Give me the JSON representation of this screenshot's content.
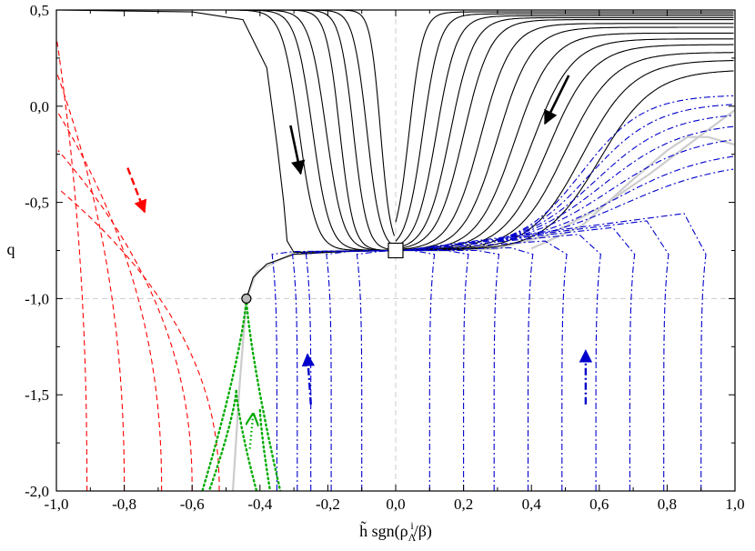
{
  "chart_data": {
    "type": "line",
    "title": "",
    "xlabel": "h̃ sgn(ρΛi/β)",
    "ylabel": "q",
    "xlim": [
      -1.0,
      1.0
    ],
    "ylim": [
      -2.0,
      0.5
    ],
    "x_ticks": [
      -1.0,
      -0.8,
      -0.6,
      -0.4,
      -0.2,
      0.0,
      0.2,
      0.4,
      0.6,
      0.8,
      1.0
    ],
    "x_tick_labels": [
      "-1,0",
      "-0,8",
      "-0,6",
      "-0,4",
      "-0,2",
      "0,0",
      "0,2",
      "0,4",
      "0,6",
      "0,8",
      "1,0"
    ],
    "y_ticks": [
      0.5,
      0.0,
      -0.5,
      -1.0,
      -1.5,
      -2.0
    ],
    "y_tick_labels": [
      "0,5",
      "0,0",
      "-0,5",
      "-1,0",
      "-1,5",
      "-2,0"
    ],
    "reference_lines": {
      "vertical_x": 0.0,
      "horizontal_y": -1.0
    },
    "fixed_points": [
      {
        "name": "square-marker",
        "x": 0.0,
        "y": -0.75
      },
      {
        "name": "circle-marker",
        "x": -0.44,
        "y": -1.0
      }
    ],
    "series": [
      {
        "name": "black-solid-left",
        "style": "solid",
        "color": "#000000",
        "curves": [
          {
            "q0": 0.5,
            "transition_x": -0.285,
            "width": 0.025
          },
          {
            "q0": 0.5,
            "transition_x": -0.245,
            "width": 0.025
          },
          {
            "q0": 0.5,
            "transition_x": -0.205,
            "width": 0.025
          },
          {
            "q0": 0.5,
            "transition_x": -0.165,
            "width": 0.02
          },
          {
            "q0": 0.5,
            "transition_x": -0.125,
            "width": 0.02
          },
          {
            "q0": 0.5,
            "transition_x": -0.085,
            "width": 0.02
          },
          {
            "q0": 0.5,
            "transition_x": -0.045,
            "width": 0.015
          }
        ]
      },
      {
        "name": "black-solid-right",
        "style": "solid",
        "color": "#000000",
        "curves": [
          {
            "q_end": 0.49,
            "transition_x": 0.04,
            "width": 0.02
          },
          {
            "q_end": 0.48,
            "transition_x": 0.08,
            "width": 0.025
          },
          {
            "q_end": 0.47,
            "transition_x": 0.12,
            "width": 0.03
          },
          {
            "q_end": 0.46,
            "transition_x": 0.16,
            "width": 0.035
          },
          {
            "q_end": 0.45,
            "transition_x": 0.2,
            "width": 0.04
          },
          {
            "q_end": 0.43,
            "transition_x": 0.25,
            "width": 0.045
          },
          {
            "q_end": 0.41,
            "transition_x": 0.3,
            "width": 0.05
          },
          {
            "q_end": 0.38,
            "transition_x": 0.35,
            "width": 0.055
          },
          {
            "q_end": 0.35,
            "transition_x": 0.4,
            "width": 0.06
          },
          {
            "q_end": 0.32,
            "transition_x": 0.45,
            "width": 0.065
          },
          {
            "q_end": 0.28,
            "transition_x": 0.5,
            "width": 0.07
          },
          {
            "q_end": 0.24,
            "transition_x": 0.55,
            "width": 0.075
          },
          {
            "q_end": 0.19,
            "transition_x": 0.6,
            "width": 0.08
          }
        ]
      },
      {
        "name": "red-dashed",
        "style": "dashed",
        "color": "#ff0000",
        "curves": [
          {
            "x_bottom": -0.91,
            "q_top": 0.36
          },
          {
            "x_bottom": -0.8,
            "q_top": 0.18
          },
          {
            "x_bottom": -0.69,
            "q_top": -0.02
          },
          {
            "x_bottom": -0.6,
            "q_top": -0.22
          },
          {
            "x_bottom": -0.52,
            "q_top": -0.42
          }
        ]
      },
      {
        "name": "blue-dashdot-lower",
        "style": "dash-dot",
        "color": "#0000cc",
        "curves": [
          -0.35,
          -0.29,
          -0.25,
          -0.19,
          -0.1,
          0.1,
          0.2,
          0.29,
          0.39,
          0.49,
          0.59,
          0.69,
          0.79,
          0.9
        ]
      },
      {
        "name": "blue-dashdot-upper",
        "style": "dash-dot",
        "color": "#0000cc",
        "curves": [
          {
            "q_end": 0.06
          },
          {
            "q_end": 0.02
          },
          {
            "q_end": -0.03
          },
          {
            "q_end": -0.08
          },
          {
            "q_end": -0.14
          },
          {
            "q_end": -0.22
          },
          {
            "q_end": -0.28
          }
        ]
      },
      {
        "name": "green-dotted",
        "style": "dotted",
        "color": "#00aa00",
        "curves": [
          {
            "x_start": -0.44,
            "y_start": -1.0,
            "x_end": -0.57,
            "y_end": -2.0
          },
          {
            "x_start": -0.44,
            "y_start": -1.0,
            "x_end": -0.34,
            "y_end": -2.0
          },
          {
            "x_start": -0.47,
            "y_start": -1.48,
            "x_end": -0.55,
            "y_end": -2.0
          },
          {
            "x_start": -0.47,
            "y_start": -1.48,
            "x_end": -0.41,
            "y_end": -2.0
          },
          {
            "x_start": -0.4,
            "y_start": -1.58,
            "x_end": -0.37,
            "y_end": -2.0
          }
        ]
      },
      {
        "name": "gray-separatrix",
        "style": "solid",
        "color": "#cccccc",
        "points": [
          [
            -0.48,
            -2.0
          ],
          [
            -0.46,
            -1.45
          ],
          [
            -0.44,
            -1.0
          ],
          [
            -0.41,
            -0.86
          ],
          [
            -0.3,
            -0.76
          ],
          [
            -0.15,
            -0.75
          ],
          [
            0.0,
            -0.75
          ],
          [
            0.15,
            -0.75
          ],
          [
            0.3,
            -0.74
          ],
          [
            0.45,
            -0.67
          ],
          [
            0.6,
            -0.53
          ],
          [
            0.75,
            -0.35
          ],
          [
            0.9,
            -0.15
          ],
          [
            1.0,
            -0.02
          ]
        ]
      },
      {
        "name": "gray-envelope",
        "style": "solid",
        "color": "#cccccc",
        "points": [
          [
            0.4,
            -0.74
          ],
          [
            0.55,
            -0.62
          ],
          [
            0.7,
            -0.38
          ],
          [
            0.8,
            -0.23
          ],
          [
            0.86,
            -0.16
          ],
          [
            0.92,
            -0.16
          ],
          [
            1.0,
            -0.2
          ]
        ]
      }
    ],
    "direction_arrows": [
      {
        "color": "#000000",
        "from": [
          -0.31,
          -0.1
        ],
        "to": [
          -0.28,
          -0.35
        ]
      },
      {
        "color": "#000000",
        "from": [
          0.51,
          0.16
        ],
        "to": [
          0.44,
          -0.09
        ]
      },
      {
        "color": "#ff0000",
        "from": [
          -0.79,
          -0.32
        ],
        "to": [
          -0.74,
          -0.55
        ]
      },
      {
        "color": "#0000cc",
        "from": [
          -0.25,
          -1.55
        ],
        "to": [
          -0.26,
          -1.29
        ]
      },
      {
        "color": "#0000cc",
        "from": [
          0.56,
          -1.55
        ],
        "to": [
          0.56,
          -1.27
        ]
      },
      {
        "color": "#00aa00",
        "from": [
          -0.43,
          -1.78
        ],
        "to": [
          -0.42,
          -1.6
        ]
      }
    ]
  }
}
